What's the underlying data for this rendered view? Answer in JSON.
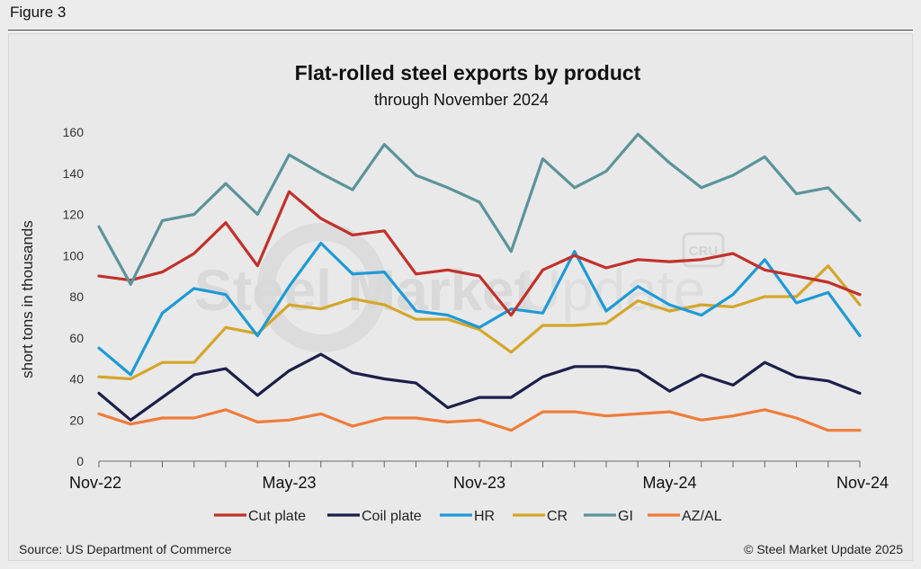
{
  "figure_label": "Figure 3",
  "source": "Source: US Department of Commerce",
  "credit": "© Steel Market Update 2025",
  "watermark": {
    "strong": "Steel Market",
    "light": "Update",
    "badge": "CRU"
  },
  "chart_data": {
    "type": "line",
    "title": "Flat-rolled steel exports by product",
    "subtitle": "through November 2024",
    "xlabel": "",
    "ylabel": "short tons in thousands",
    "ylim": [
      0,
      160
    ],
    "yticks": [
      0,
      20,
      40,
      60,
      80,
      100,
      120,
      140,
      160
    ],
    "x": [
      "Nov-22",
      "Dec-22",
      "Jan-23",
      "Feb-23",
      "Mar-23",
      "Apr-23",
      "May-23",
      "Jun-23",
      "Jul-23",
      "Aug-23",
      "Sep-23",
      "Oct-23",
      "Nov-23",
      "Dec-23",
      "Jan-24",
      "Feb-24",
      "Mar-24",
      "Apr-24",
      "May-24",
      "Jun-24",
      "Jul-24",
      "Aug-24",
      "Sep-24",
      "Oct-24",
      "Nov-24"
    ],
    "xtick_labels": [
      {
        "index": 0,
        "label": "Nov-22"
      },
      {
        "index": 6,
        "label": "May-23"
      },
      {
        "index": 12,
        "label": "Nov-23"
      },
      {
        "index": 18,
        "label": "May-24"
      },
      {
        "index": 24,
        "label": "Nov-24"
      }
    ],
    "legend_position": "bottom",
    "grid": false,
    "series": [
      {
        "name": "Cut plate",
        "color": "#c1312a",
        "values": [
          90,
          88,
          92,
          101,
          116,
          95,
          131,
          118,
          110,
          112,
          91,
          93,
          90,
          71,
          93,
          100,
          94,
          98,
          97,
          98,
          101,
          93,
          90,
          87,
          81
        ]
      },
      {
        "name": "Coil plate",
        "color": "#1c1f4a",
        "values": [
          33,
          20,
          31,
          42,
          45,
          32,
          44,
          52,
          43,
          40,
          38,
          26,
          31,
          31,
          41,
          46,
          46,
          44,
          34,
          42,
          37,
          48,
          41,
          39,
          33
        ]
      },
      {
        "name": "HR",
        "color": "#1e9ad6",
        "values": [
          55,
          42,
          72,
          84,
          81,
          61,
          85,
          106,
          91,
          92,
          73,
          71,
          65,
          74,
          72,
          102,
          73,
          85,
          76,
          71,
          81,
          98,
          77,
          82,
          61
        ]
      },
      {
        "name": "CR",
        "color": "#d4a62a",
        "values": [
          41,
          40,
          48,
          48,
          65,
          62,
          76,
          74,
          79,
          76,
          69,
          69,
          64,
          53,
          66,
          66,
          67,
          78,
          73,
          76,
          75,
          80,
          80,
          95,
          76
        ]
      },
      {
        "name": "GI",
        "color": "#5b949a",
        "values": [
          114,
          86,
          117,
          120,
          135,
          120,
          149,
          140,
          132,
          154,
          139,
          133,
          126,
          102,
          147,
          133,
          141,
          159,
          145,
          133,
          139,
          148,
          130,
          133,
          117
        ]
      },
      {
        "name": "AZ/AL",
        "color": "#ee7d3b",
        "values": [
          23,
          18,
          21,
          21,
          25,
          19,
          20,
          23,
          17,
          21,
          21,
          19,
          20,
          15,
          24,
          24,
          22,
          23,
          24,
          20,
          22,
          25,
          21,
          15,
          15
        ]
      }
    ]
  }
}
